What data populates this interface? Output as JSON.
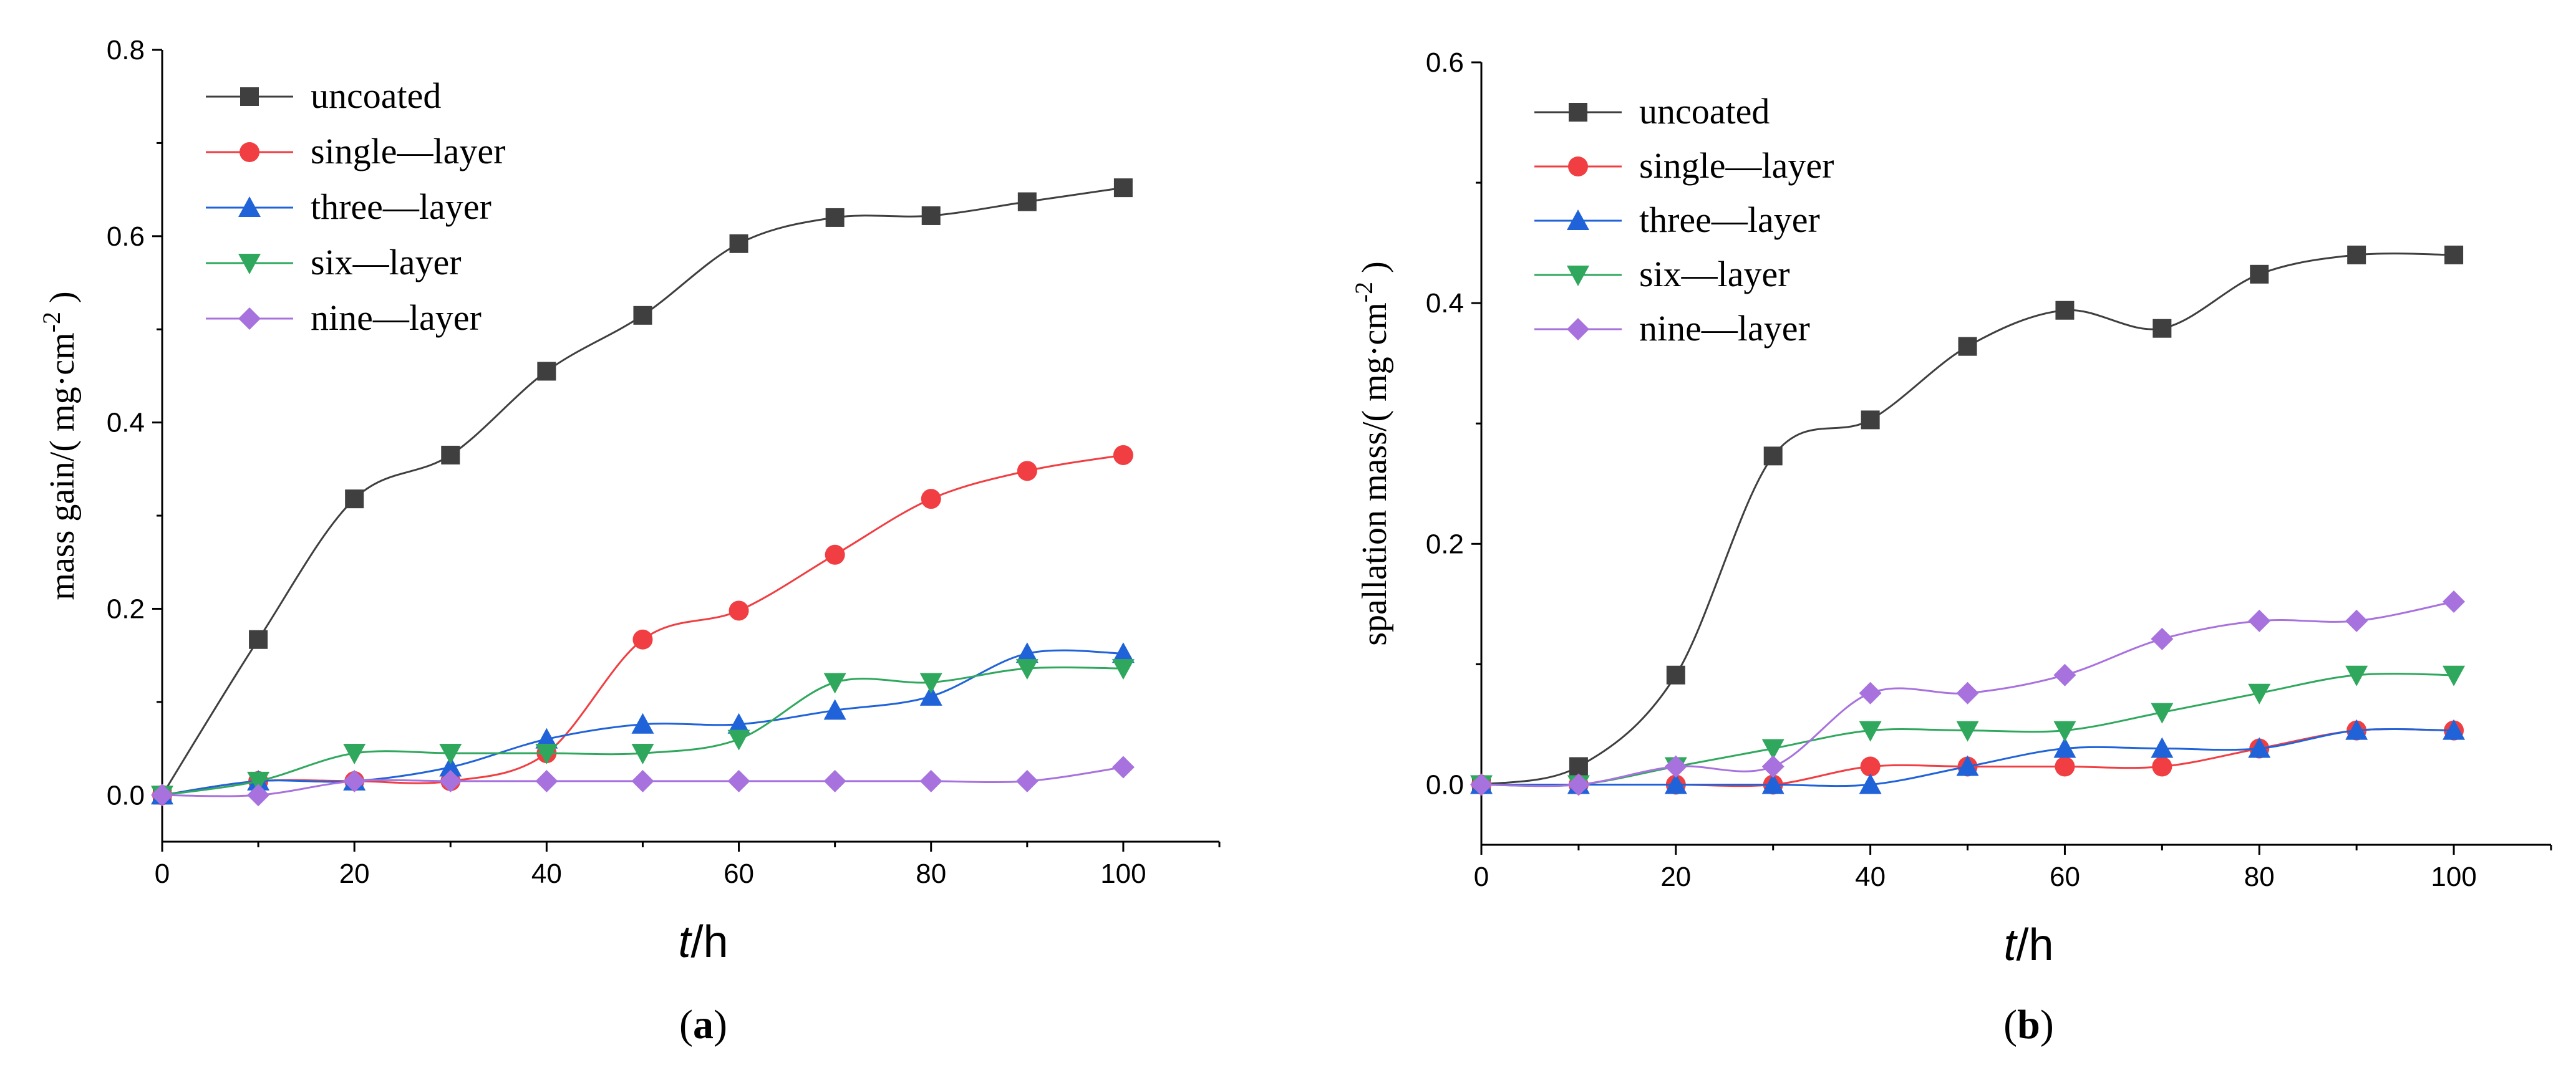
{
  "figure": {
    "panel_labels": [
      "(a)",
      "(b)"
    ]
  },
  "styles": {
    "series_colors": [
      "#3f3f3f",
      "#f03e42",
      "#2063d9",
      "#2fa85d",
      "#a872de"
    ],
    "series_markers": [
      "square",
      "circle",
      "triangle-up",
      "triangle-down",
      "diamond"
    ]
  },
  "chart_data": [
    {
      "type": "line",
      "panel": "a",
      "title": "",
      "panel_label": "(a)",
      "xlabel_italic": "t",
      "xlabel_unit": "/h",
      "ylabel": "mass gain/( mg·cm",
      "ylabel_sup": "-2",
      "ylabel_tail": " )",
      "xlim": [
        0,
        110
      ],
      "ylim": [
        -0.05,
        0.8
      ],
      "xticks": [
        "0",
        "20",
        "40",
        "60",
        "80",
        "100"
      ],
      "yticks": [
        "0.0",
        "0.2",
        "0.4",
        "0.6",
        "0.8"
      ],
      "legend_position": "top-left",
      "x": [
        0,
        10,
        20,
        30,
        40,
        50,
        60,
        70,
        80,
        90,
        100
      ],
      "series": [
        {
          "name": "uncoated",
          "values": [
            0.0,
            0.167,
            0.318,
            0.365,
            0.455,
            0.515,
            0.592,
            0.62,
            0.622,
            0.637,
            0.652
          ]
        },
        {
          "name": "single—layer",
          "values": [
            0.0,
            0.015,
            0.015,
            0.015,
            0.045,
            0.167,
            0.198,
            0.258,
            0.318,
            0.348,
            0.365
          ]
        },
        {
          "name": "three—layer",
          "values": [
            0.0,
            0.015,
            0.015,
            0.03,
            0.06,
            0.076,
            0.076,
            0.091,
            0.106,
            0.152,
            0.152
          ]
        },
        {
          "name": "six—layer",
          "values": [
            0.0,
            0.015,
            0.045,
            0.045,
            0.045,
            0.045,
            0.06,
            0.121,
            0.121,
            0.136,
            0.136
          ]
        },
        {
          "name": "nine—layer",
          "values": [
            0.0,
            0.0,
            0.015,
            0.015,
            0.015,
            0.015,
            0.015,
            0.015,
            0.015,
            0.015,
            0.03
          ]
        }
      ]
    },
    {
      "type": "line",
      "panel": "b",
      "title": "",
      "panel_label": "(b)",
      "xlabel_italic": "t",
      "xlabel_unit": "/h",
      "ylabel": "spallation mass/( mg·cm",
      "ylabel_sup": "-2",
      "ylabel_tail": " )",
      "xlim": [
        0,
        110
      ],
      "ylim": [
        -0.05,
        0.6
      ],
      "xticks": [
        "0",
        "20",
        "40",
        "60",
        "80",
        "100"
      ],
      "yticks": [
        "0.0",
        "0.2",
        "0.4",
        "0.6"
      ],
      "legend_position": "top-left",
      "x": [
        0,
        10,
        20,
        30,
        40,
        50,
        60,
        70,
        80,
        90,
        100
      ],
      "series": [
        {
          "name": "uncoated",
          "values": [
            0.0,
            0.015,
            0.091,
            0.273,
            0.303,
            0.364,
            0.394,
            0.379,
            0.424,
            0.44,
            0.44
          ]
        },
        {
          "name": "single—layer",
          "values": [
            0.0,
            0.0,
            0.0,
            0.0,
            0.015,
            0.015,
            0.015,
            0.015,
            0.03,
            0.045,
            0.045
          ]
        },
        {
          "name": "three—layer",
          "values": [
            0.0,
            0.0,
            0.0,
            0.0,
            0.0,
            0.015,
            0.03,
            0.03,
            0.03,
            0.045,
            0.045
          ]
        },
        {
          "name": "six—layer",
          "values": [
            0.0,
            0.0,
            0.015,
            0.03,
            0.045,
            0.045,
            0.045,
            0.06,
            0.076,
            0.091,
            0.091
          ]
        },
        {
          "name": "nine—layer",
          "values": [
            0.0,
            0.0,
            0.015,
            0.015,
            0.076,
            0.076,
            0.091,
            0.121,
            0.136,
            0.136,
            0.152
          ]
        }
      ]
    }
  ]
}
